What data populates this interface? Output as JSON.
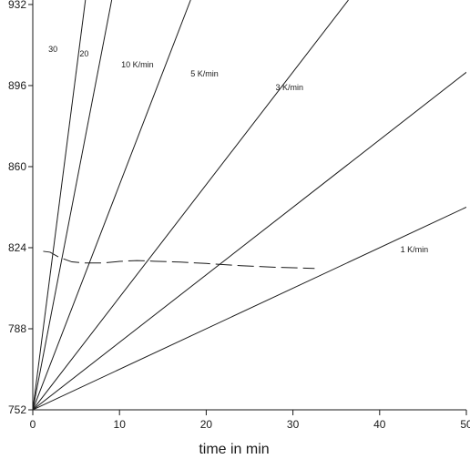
{
  "chart_data": {
    "type": "line",
    "title": "",
    "xlabel": "time in min",
    "ylabel": "",
    "xlim": [
      0,
      50
    ],
    "ylim": [
      752,
      934
    ],
    "x_ticks": [
      0,
      10,
      20,
      30,
      40,
      50
    ],
    "y_ticks": [
      752,
      788,
      824,
      860,
      896,
      932
    ],
    "x_tick_labels": [
      "0",
      "10",
      "20",
      "30",
      "40",
      "50"
    ],
    "y_tick_labels": [
      "752",
      "788",
      "824",
      "860",
      "896",
      "932"
    ],
    "grid": false,
    "series": [
      {
        "label": "30",
        "x": [
          0,
          6.07
        ],
        "y": [
          752,
          934
        ]
      },
      {
        "label": "20",
        "x": [
          0,
          9.1
        ],
        "y": [
          752,
          934
        ]
      },
      {
        "label": "10 K/min",
        "x": [
          0,
          18.2
        ],
        "y": [
          752,
          934
        ]
      },
      {
        "label": "5 K/min",
        "x": [
          0,
          36.4
        ],
        "y": [
          752,
          934
        ]
      },
      {
        "label": "3 K/min",
        "x": [
          0,
          60.7
        ],
        "y": [
          752,
          934
        ]
      },
      {
        "label": "1 K/min",
        "x": [
          0,
          50
        ],
        "y": [
          752,
          842
        ]
      }
    ],
    "dashed_curve": {
      "x": [
        1.2,
        2.0,
        3.0,
        4.5,
        6.0,
        8.0,
        10.0,
        12.0,
        14.0,
        17.0,
        20.0,
        24.0,
        28.0,
        32.5
      ],
      "y": [
        822.4,
        822.0,
        819.8,
        817.7,
        817.2,
        817.2,
        817.9,
        818.3,
        818.0,
        817.6,
        817.0,
        816.0,
        815.3,
        814.8
      ]
    },
    "annotations": [
      {
        "text": "30",
        "x": 1.8,
        "y": 911
      },
      {
        "text": "20",
        "x": 5.4,
        "y": 909
      },
      {
        "text": "10 K/min",
        "x": 10.2,
        "y": 904
      },
      {
        "text": "5 K/min",
        "x": 18.2,
        "y": 900
      },
      {
        "text": "3 K/min",
        "x": 28.0,
        "y": 894
      },
      {
        "text": "1 K/min",
        "x": 42.4,
        "y": 822
      }
    ]
  }
}
